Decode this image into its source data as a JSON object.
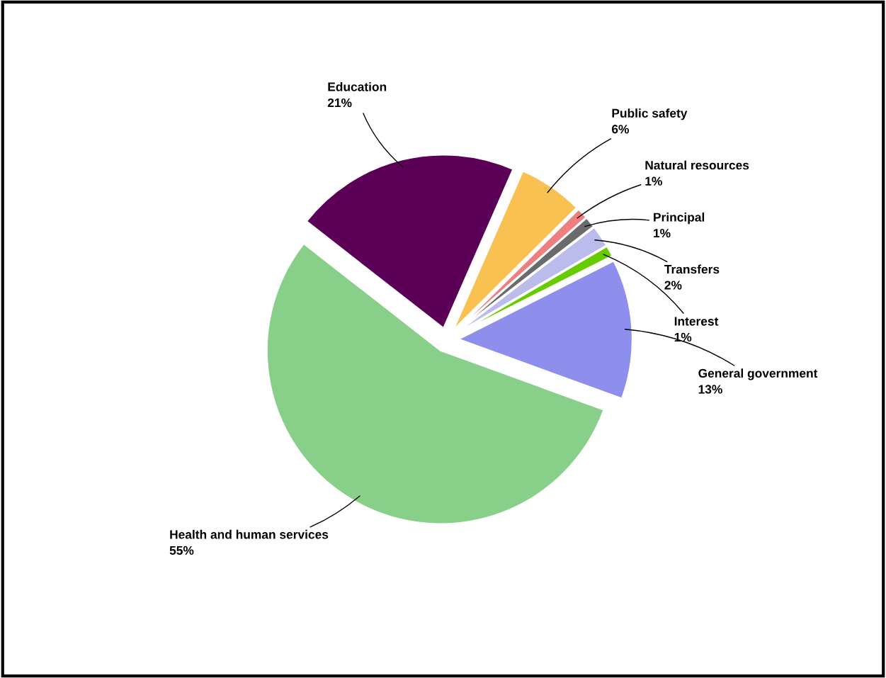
{
  "chart_data": {
    "type": "pie",
    "categories": [
      "Education",
      "Public safety",
      "Natural resources",
      "Principal",
      "Transfers",
      "Interest",
      "General government",
      "Health and human services"
    ],
    "values": [
      21,
      6,
      1,
      1,
      2,
      1,
      13,
      55
    ],
    "colors": [
      "#5c0057",
      "#f9c152",
      "#ef7f7f",
      "#6b6b6b",
      "#bcbcec",
      "#66cc00",
      "#8e8eec",
      "#88d08a"
    ],
    "value_labels": [
      "21%",
      "6%",
      "1%",
      "1%",
      "2%",
      "1%",
      "13%",
      "55%"
    ],
    "legend": false
  }
}
